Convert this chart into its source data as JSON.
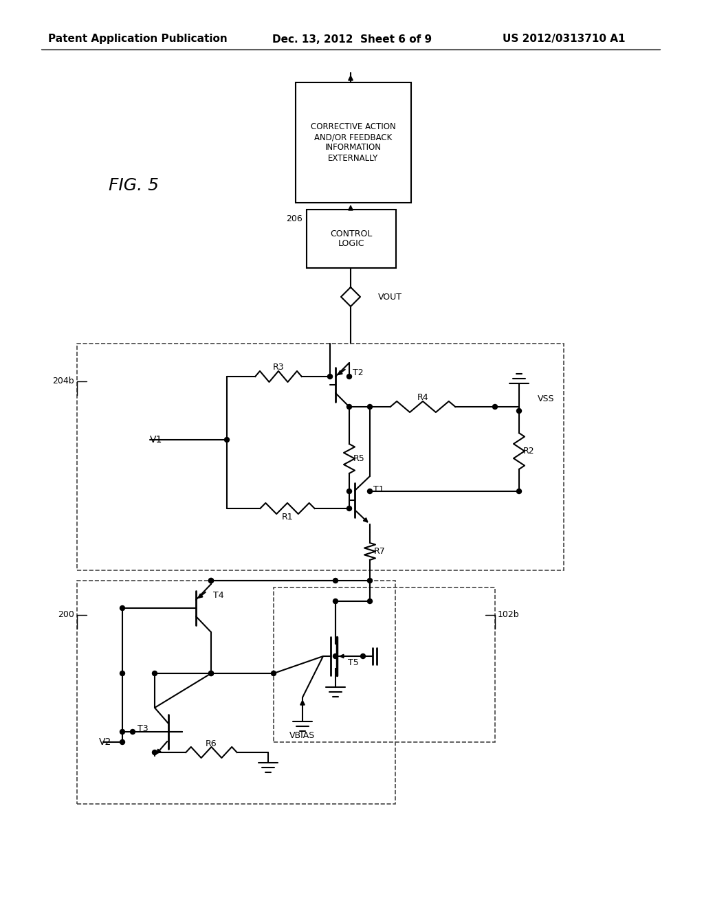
{
  "header_left": "Patent Application Publication",
  "header_center": "Dec. 13, 2012  Sheet 6 of 9",
  "header_right": "US 2012/0313710 A1",
  "bg": "#ffffff"
}
